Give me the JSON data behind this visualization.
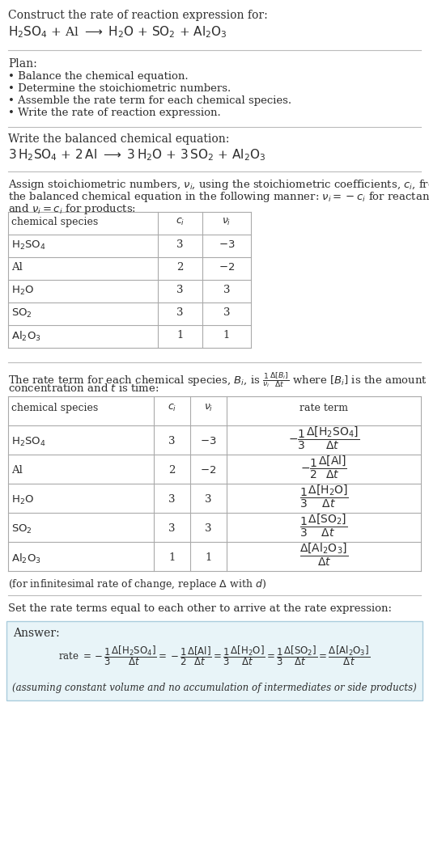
{
  "bg_color": "#ffffff",
  "text_color": "#2d2d2d",
  "table_border_color": "#aaaaaa",
  "answer_box_color": "#e8f4f8",
  "answer_box_border": "#aaccdd",
  "title_line1": "Construct the rate of reaction expression for:",
  "plan_header": "Plan:",
  "plan_items": [
    "• Balance the chemical equation.",
    "• Determine the stoichiometric numbers.",
    "• Assemble the rate term for each chemical species.",
    "• Write the rate of reaction expression."
  ],
  "balanced_header": "Write the balanced chemical equation:",
  "set_equal_text": "Set the rate terms equal to each other to arrive at the rate expression:",
  "answer_label": "Answer:",
  "assuming_note": "(assuming constant volume and no accumulation of intermediates or side products)"
}
